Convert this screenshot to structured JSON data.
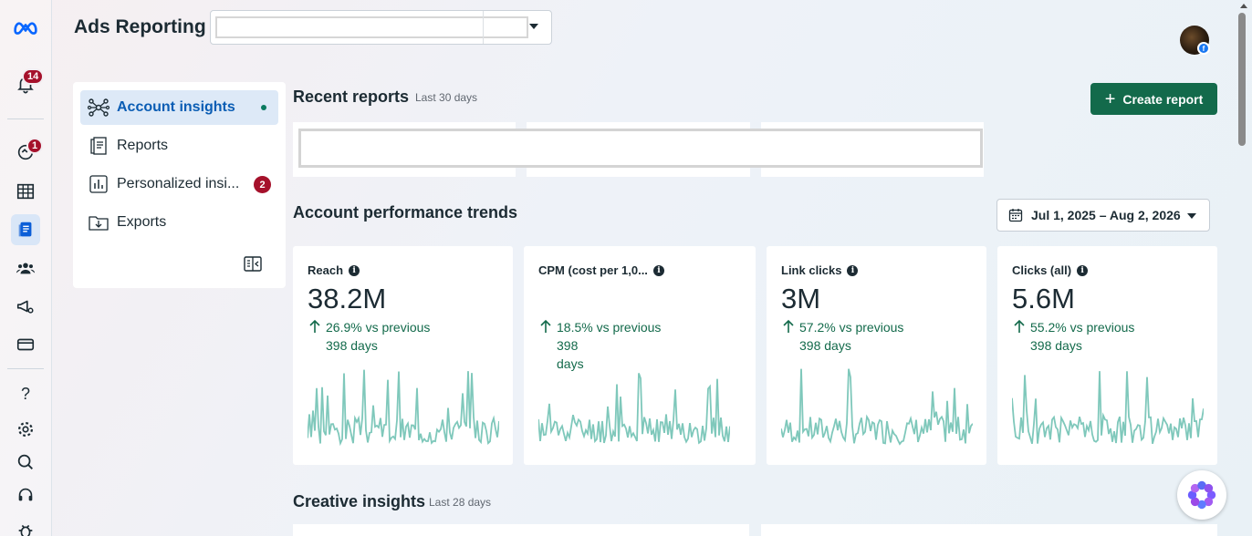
{
  "app": {
    "title": "Ads Reporting",
    "logo_icon": "meta-logo-icon"
  },
  "account_selector": {
    "value": ""
  },
  "rail": {
    "notifications_badge": "14",
    "alerts_badge": "1"
  },
  "sidebar": {
    "items": [
      {
        "label": "Account insights",
        "icon": "network-icon",
        "active": true
      },
      {
        "label": "Reports",
        "icon": "report-icon"
      },
      {
        "label": "Personalized insi...",
        "icon": "bar-chart-icon",
        "badge": "2"
      },
      {
        "label": "Exports",
        "icon": "download-folder-icon"
      }
    ]
  },
  "recent_reports": {
    "title": "Recent reports",
    "subtitle": "Last 30 days",
    "create_label": "Create report"
  },
  "trends": {
    "title": "Account performance trends",
    "date_range": "Jul 1, 2025 – Aug 2, 2026"
  },
  "metrics": [
    {
      "title": "Reach",
      "value": "38.2M",
      "delta_line1": "26.9% vs previous",
      "delta_line2": "398 days"
    },
    {
      "title": "CPM (cost per 1,0...",
      "value": "",
      "delta_line1": "18.5% vs previous 398",
      "delta_line2": "days"
    },
    {
      "title": "Link clicks",
      "value": "3M",
      "delta_line1": "57.2% vs previous",
      "delta_line2": "398 days"
    },
    {
      "title": "Clicks (all)",
      "value": "5.6M",
      "delta_line1": "55.2% vs previous",
      "delta_line2": "398 days"
    }
  ],
  "creative": {
    "title": "Creative insights",
    "subtitle": "Last 28 days"
  },
  "colors": {
    "accent": "#136a4b",
    "spark": "#7fc8bb",
    "badge": "#a5112b",
    "active_nav": "#dde9f7"
  }
}
